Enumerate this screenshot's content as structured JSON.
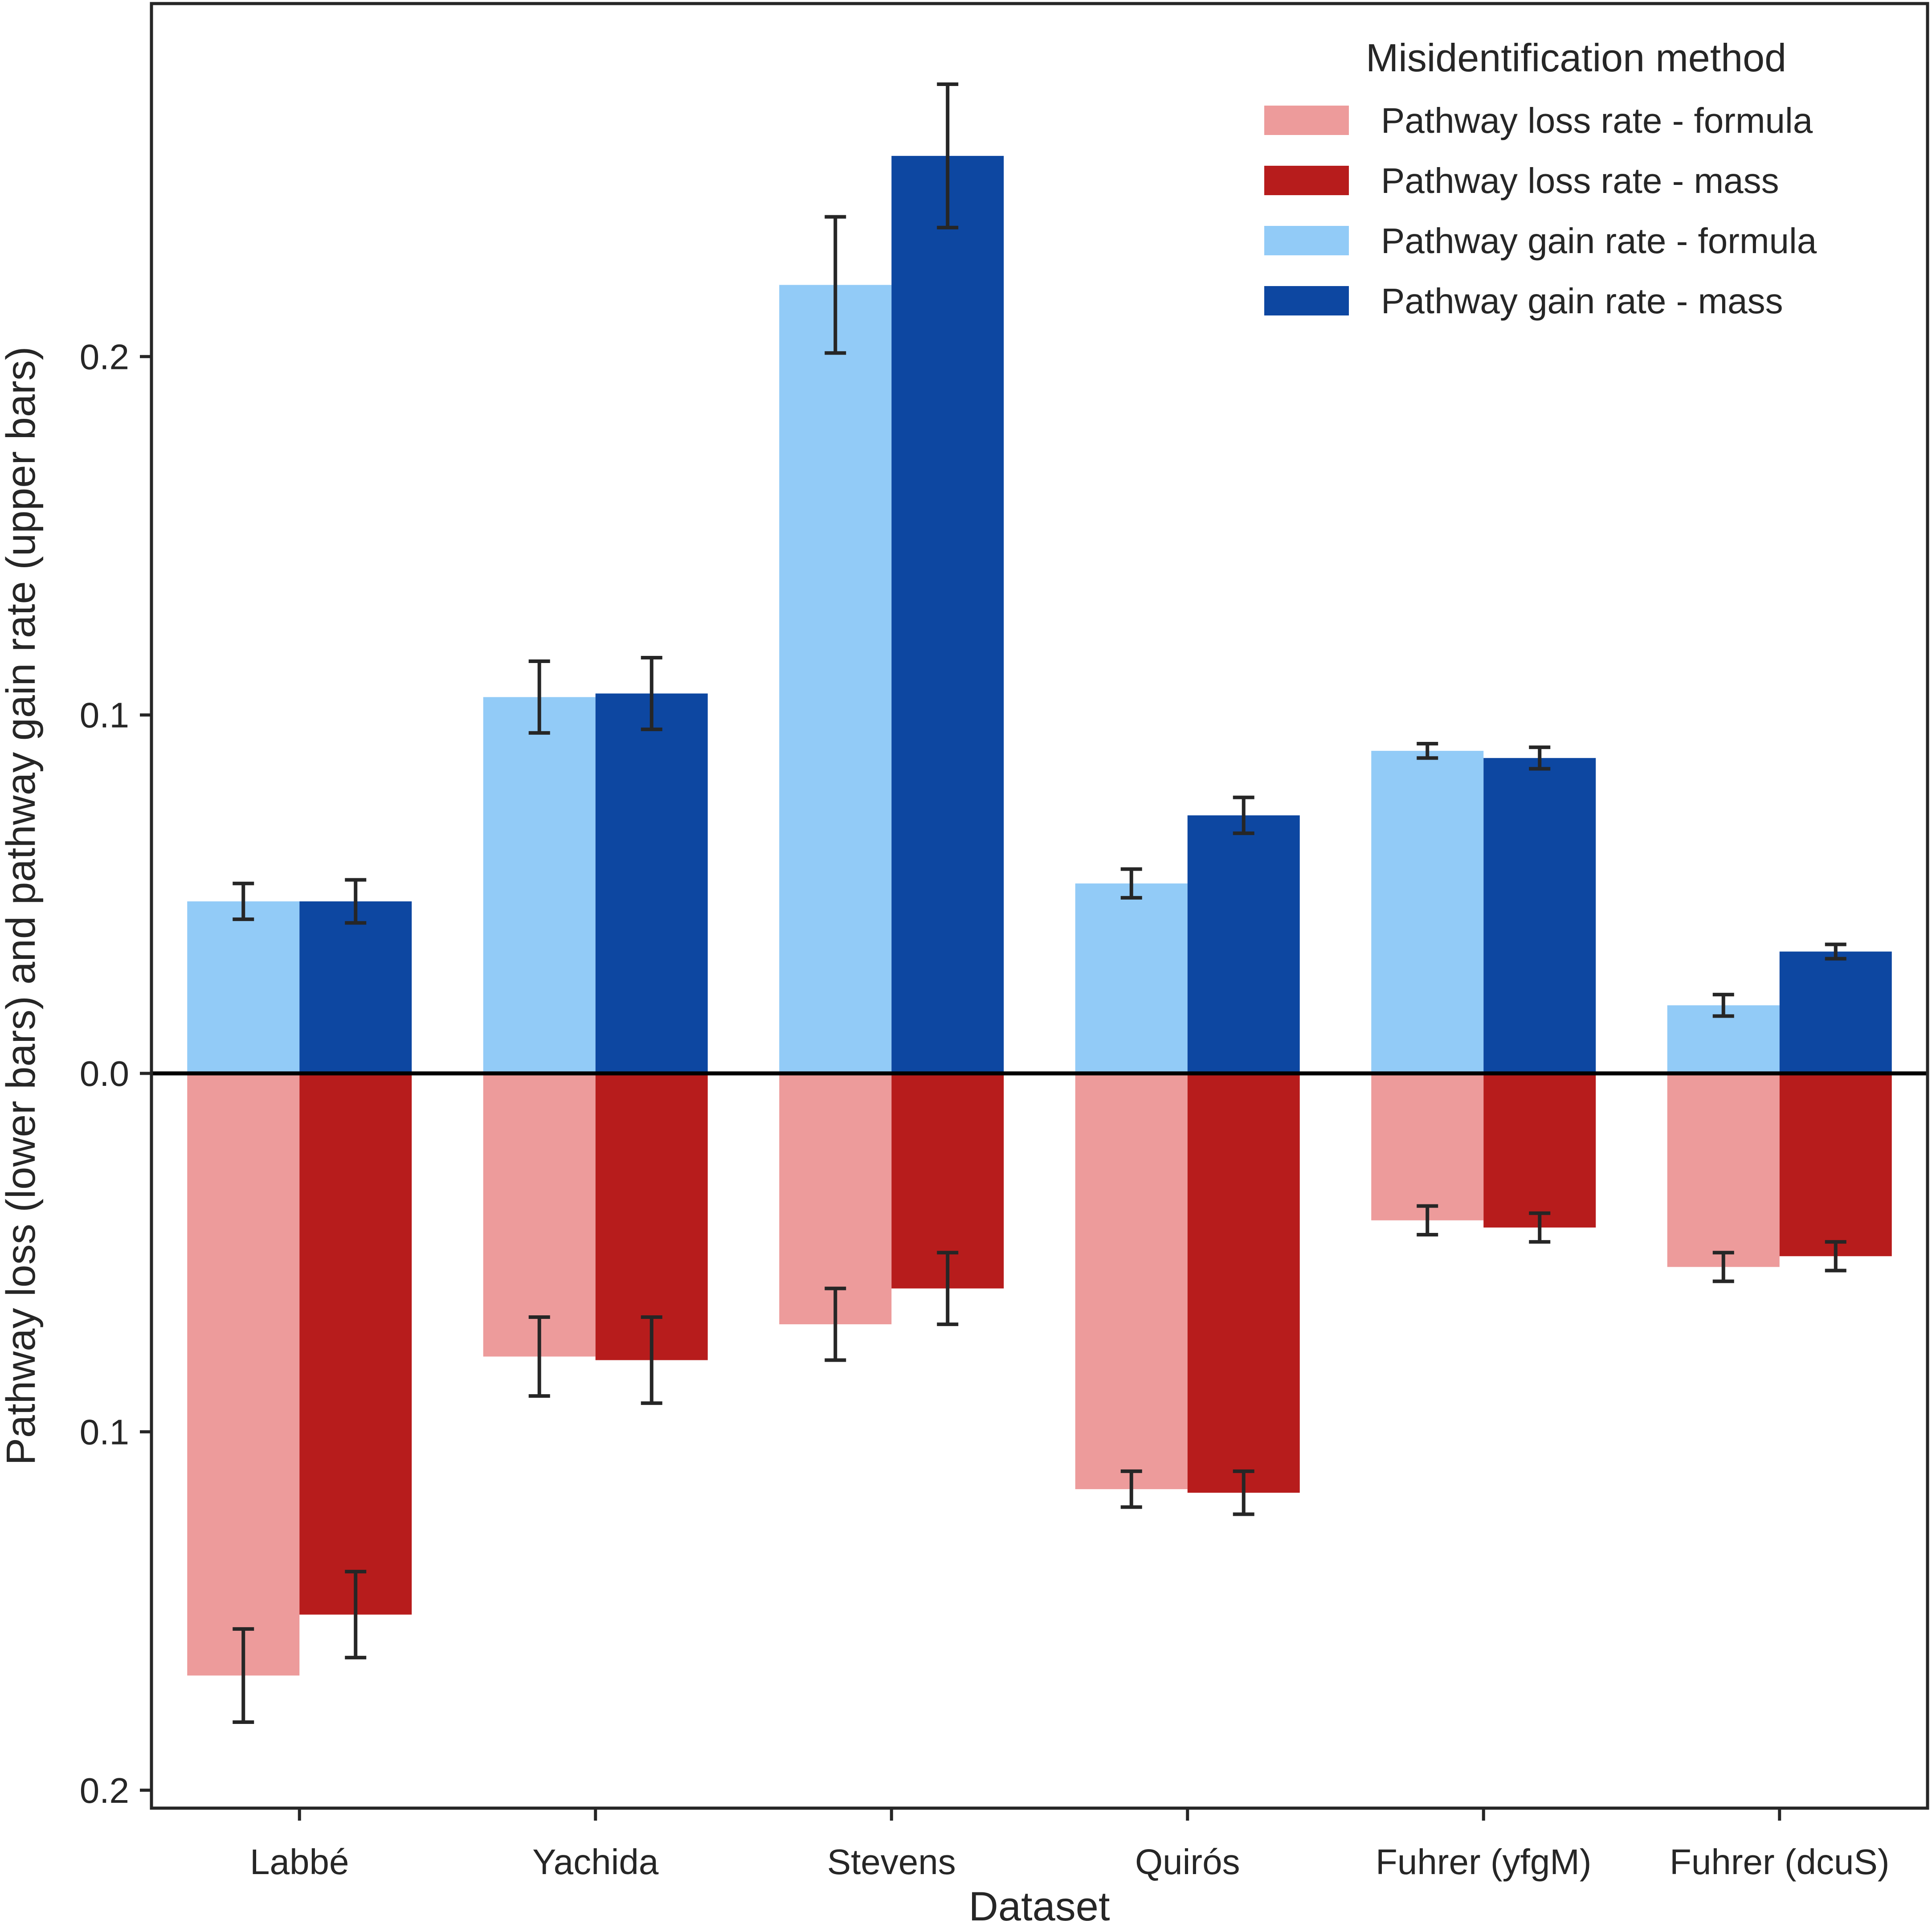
{
  "chart_data": {
    "type": "bar",
    "orientation": "diverging",
    "title": "",
    "xlabel": "Dataset",
    "ylabel": "Pathway loss (lower bars) and pathway gain rate (upper bars)",
    "categories": [
      "Labbé",
      "Yachida",
      "Stevens",
      "Quirós",
      "Fuhrer (yfgM)",
      "Fuhrer (dcuS)"
    ],
    "ylim": [
      -0.205,
      0.2985
    ],
    "yticks": [
      {
        "value": 0.2,
        "label": "0.2"
      },
      {
        "value": 0.1,
        "label": "0.1"
      },
      {
        "value": 0.0,
        "label": "0.0"
      },
      {
        "value": -0.1,
        "label": "0.1"
      },
      {
        "value": -0.2,
        "label": "0.2"
      }
    ],
    "legend": {
      "title": "Misidentification method",
      "position": "top-right"
    },
    "series": [
      {
        "name": "Pathway loss rate - formula",
        "direction": "down",
        "color": "#ed9b9b",
        "values": [
          0.168,
          0.079,
          0.07,
          0.116,
          0.041,
          0.054
        ],
        "errors": [
          0.013,
          0.011,
          0.01,
          0.005,
          0.004,
          0.004
        ]
      },
      {
        "name": "Pathway loss rate - mass",
        "direction": "down",
        "color": "#b71c1c",
        "values": [
          0.151,
          0.08,
          0.06,
          0.117,
          0.043,
          0.051
        ],
        "errors": [
          0.012,
          0.012,
          0.01,
          0.006,
          0.004,
          0.004
        ]
      },
      {
        "name": "Pathway gain rate - formula",
        "direction": "up",
        "color": "#92cbf7",
        "values": [
          0.048,
          0.105,
          0.22,
          0.053,
          0.09,
          0.019
        ],
        "errors": [
          0.005,
          0.01,
          0.019,
          0.004,
          0.002,
          0.003
        ]
      },
      {
        "name": "Pathway gain rate - mass",
        "direction": "up",
        "color": "#0d47a1",
        "values": [
          0.048,
          0.106,
          0.256,
          0.072,
          0.088,
          0.034
        ],
        "errors": [
          0.006,
          0.01,
          0.02,
          0.005,
          0.003,
          0.002
        ]
      }
    ]
  }
}
